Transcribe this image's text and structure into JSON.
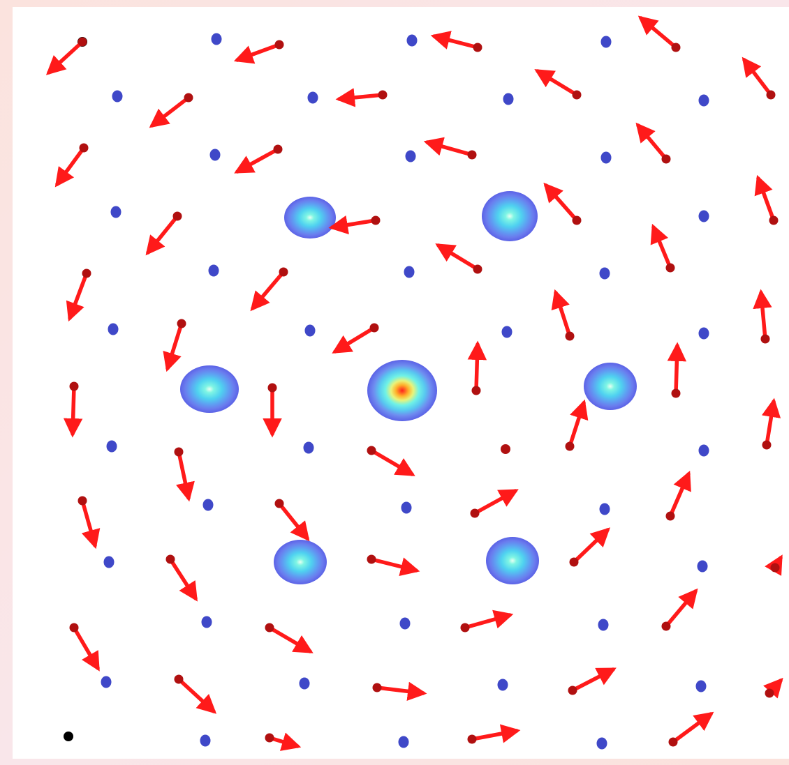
{
  "figure": {
    "description_visible_text": "",
    "colors": {
      "background": "#ffffff",
      "page_background": "#fae4e2",
      "site_dot": "#3f48c8",
      "moment_arrow": "#ff1a1a",
      "moment_base": "#b01010",
      "corner_marker": "#000000",
      "intensity_colormap": [
        "#5b62e6",
        "#6f8cf0",
        "#58c8f0",
        "#6ff2e6",
        "#e9f37a",
        "#ffb02a",
        "#ff2020"
      ]
    },
    "icons": {
      "site": "blue-dot-icon",
      "moment": "red-arrow-icon",
      "peak": "intensity-peak-icon",
      "corner": "black-dot-icon"
    },
    "peaks_count": 7,
    "central_peak_strength": "high",
    "satellite_peak_strength": "low"
  }
}
